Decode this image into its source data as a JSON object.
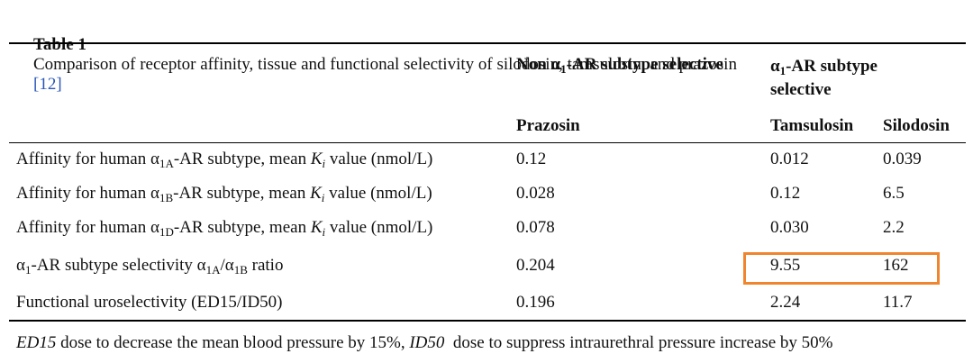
{
  "caption": {
    "label": "Table 1",
    "text": "Comparison of receptor affinity, tissue and functional selectivity of silodosin, tamsulosin, and prazosin",
    "ref": "[12]"
  },
  "table": {
    "group_headers": [
      [
        "Non α",
        "1",
        "-AR subtype selective"
      ],
      [
        "α",
        "1",
        "-AR subtype selective"
      ]
    ],
    "columns": [
      "Prazosin",
      "Tamsulosin",
      "Silodosin"
    ],
    "rows": [
      {
        "label": [
          "Affinity for human α",
          "1A",
          "-AR subtype, mean ",
          "K",
          "i",
          " value (nmol/L)"
        ],
        "values": [
          "0.12",
          "0.012",
          "0.039"
        ]
      },
      {
        "label": [
          "Affinity for human α",
          "1B",
          "-AR subtype, mean ",
          "K",
          "i",
          " value (nmol/L)"
        ],
        "values": [
          "0.028",
          "0.12",
          "6.5"
        ]
      },
      {
        "label": [
          "Affinity for human α",
          "1D",
          "-AR subtype, mean ",
          "K",
          "i",
          " value (nmol/L)"
        ],
        "values": [
          "0.078",
          "0.030",
          "2.2"
        ]
      },
      {
        "label": [
          "α",
          "1",
          "-AR subtype selectivity α",
          "1A",
          "/α",
          "1B",
          " ratio"
        ],
        "values": [
          "0.204",
          "9.55",
          "162"
        ]
      },
      {
        "label": [
          "Functional uroselectivity (ED15/ID50)"
        ],
        "values": [
          "0.196",
          "2.24",
          "11.7"
        ]
      }
    ]
  },
  "footnote": [
    "ED15",
    " dose to decrease the mean blood pressure by 15%, ",
    "ID50",
    "  dose to suppress intraurethral pressure increase by 50%"
  ]
}
